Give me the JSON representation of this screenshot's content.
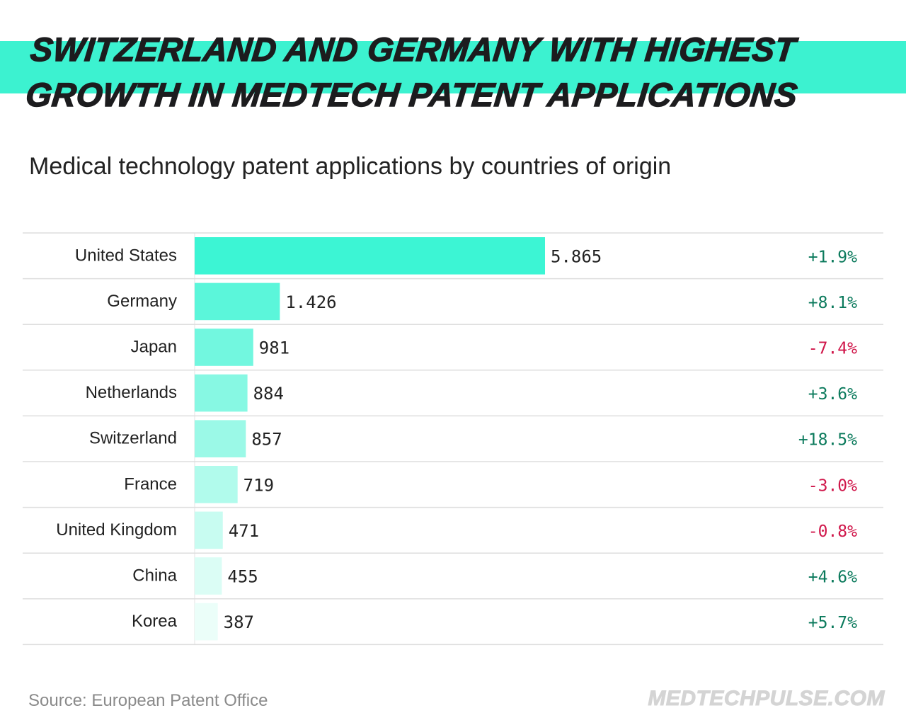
{
  "header": {
    "title_line1": "SWITZERLAND AND GERMANY WITH HIGHEST",
    "title_line2": "GROWTH IN MEDTECH PATENT APPLICATIONS",
    "accent_color": "#3cf2d0"
  },
  "chart_data": {
    "type": "bar",
    "orientation": "horizontal",
    "title": "Medical technology patent applications by countries of origin",
    "categories": [
      "United States",
      "Germany",
      "Japan",
      "Netherlands",
      "Switzerland",
      "France",
      "United Kingdom",
      "China",
      "Korea"
    ],
    "values": [
      5865,
      1426,
      981,
      884,
      857,
      719,
      471,
      455,
      387
    ],
    "value_labels": [
      "5.865",
      "1.426",
      "981",
      "884",
      "857",
      "719",
      "471",
      "455",
      "387"
    ],
    "growth_labels": [
      "+1.9%",
      "+8.1%",
      "-7.4%",
      "+3.6%",
      "+18.5%",
      "-3.0%",
      "-0.8%",
      "+4.6%",
      "+5.7%"
    ],
    "bar_colors": [
      "#3cf5d4",
      "#5bf6da",
      "#72f7df",
      "#87f8e3",
      "#9bf9e7",
      "#b1fbec",
      "#c8fcf1",
      "#dbfdf5",
      "#ebfef9"
    ],
    "positive_color": "#0b7a5c",
    "negative_color": "#d0164a",
    "grid": false,
    "legend": "none"
  },
  "footer": {
    "source": "Source: European Patent Office",
    "brand": "MEDTECHPULSE.COM"
  }
}
